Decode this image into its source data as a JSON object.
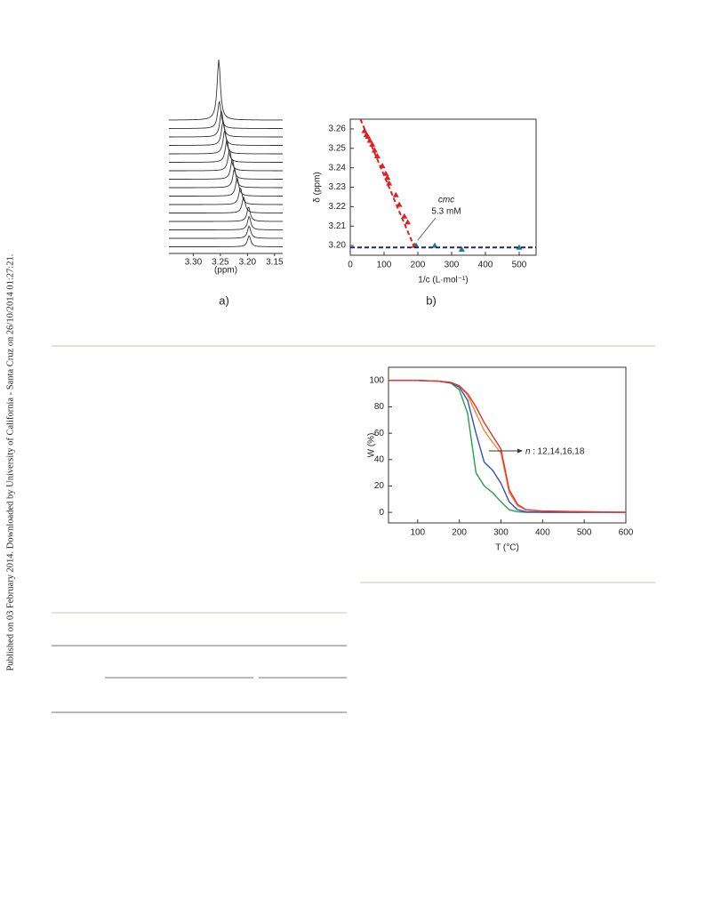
{
  "sidebar": "Published on 03 February 2014. Downloaded by University of California - Santa Cruz on 26/10/2014 01:27:21.",
  "chart_data": [
    {
      "type": "spectra",
      "caption": "a)",
      "xlabel": "(ppm)",
      "xlim": [
        3.345,
        3.135
      ],
      "xticks": [
        3.3,
        3.25,
        3.2,
        3.15
      ],
      "xtick_labels": [
        "3.30",
        "3.25",
        "3.20",
        "3.15"
      ],
      "peaks": [
        3.253,
        3.252,
        3.248,
        3.245,
        3.242,
        3.238,
        3.233,
        3.228,
        3.224,
        3.219,
        3.213,
        3.207,
        3.198,
        3.197,
        3.197,
        3.197
      ],
      "color": "#333333"
    },
    {
      "type": "scatter",
      "caption": "b)",
      "ylabel": "δ (ppm)",
      "xlabel": "1/c (L·mol⁻¹)",
      "annotation": [
        "cmc",
        "5.3 mM"
      ],
      "xlim": [
        0,
        550
      ],
      "xticks": [
        0,
        100,
        200,
        300,
        400,
        500
      ],
      "ylim": [
        3.195,
        3.265
      ],
      "yticks": [
        3.2,
        3.21,
        3.22,
        3.23,
        3.24,
        3.25,
        3.26
      ],
      "ytick_labels": [
        "3.20",
        "3.21",
        "3.22",
        "3.23",
        "3.24",
        "3.25",
        "3.26"
      ],
      "series": [
        {
          "color": "#e02020",
          "x": [
            42,
            48,
            52,
            58,
            65,
            72,
            80,
            95,
            105,
            110,
            115,
            135,
            145,
            160,
            170,
            190
          ],
          "y": [
            3.259,
            3.257,
            3.256,
            3.254,
            3.252,
            3.249,
            3.246,
            3.241,
            3.237,
            3.235,
            3.232,
            3.226,
            3.221,
            3.215,
            3.212,
            3.2
          ]
        },
        {
          "color": "#208080",
          "x": [
            195,
            250,
            330,
            500
          ],
          "y": [
            3.2,
            3.2,
            3.198,
            3.199
          ]
        },
        {
          "color": "#e02020",
          "fit": true,
          "x": [
            30,
            190
          ],
          "y": [
            3.265,
            3.199
          ]
        },
        {
          "color": "#202080",
          "fit": true,
          "x": [
            0,
            550
          ],
          "y": [
            3.199,
            3.199
          ]
        }
      ]
    },
    {
      "type": "line",
      "ylabel": "W (%)",
      "xlabel": "T (°C)",
      "annotation": [
        "n",
        ": 12,14,16,18"
      ],
      "xlim": [
        30,
        600
      ],
      "xticks": [
        100,
        200,
        300,
        400,
        500,
        600
      ],
      "ylim": [
        -8,
        110
      ],
      "yticks": [
        0,
        20,
        40,
        60,
        80,
        100
      ],
      "x": [
        30,
        100,
        150,
        180,
        200,
        220,
        240,
        260,
        280,
        300,
        320,
        340,
        360,
        400,
        500,
        600
      ],
      "series": [
        {
          "color": "#2a9d4a",
          "values": [
            100,
            100,
            99.5,
            98,
            93,
            75,
            30,
            20,
            15,
            8,
            2,
            0.5,
            0,
            0,
            0,
            0
          ]
        },
        {
          "color": "#3050c0",
          "values": [
            100,
            100,
            99.5,
            98,
            95,
            85,
            60,
            38,
            32,
            22,
            8,
            2,
            0.5,
            0,
            0,
            0
          ]
        },
        {
          "color": "#f08a30",
          "values": [
            100,
            100,
            99.5,
            98.5,
            96,
            89,
            75,
            62,
            53,
            45,
            15,
            5,
            2,
            1,
            0.5,
            0
          ]
        },
        {
          "color": "#e83030",
          "values": [
            100,
            100,
            99.5,
            98.5,
            96,
            90,
            80,
            68,
            58,
            48,
            17,
            6,
            2,
            1,
            0.5,
            0
          ]
        }
      ]
    }
  ]
}
